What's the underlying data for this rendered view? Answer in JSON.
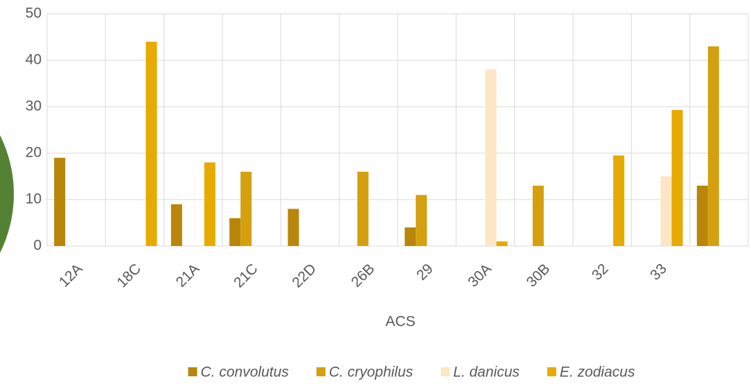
{
  "chart_data": {
    "type": "bar",
    "x_label": "ACS",
    "categories": [
      "12A",
      "18C",
      "21A",
      "21C",
      "22D",
      "26B",
      "29",
      "30A",
      "30B",
      "32",
      "33",
      null
    ],
    "series": [
      {
        "name": "C. convolutus",
        "color": "#b8860b",
        "values": [
          19,
          0,
          9,
          6,
          8,
          0,
          4,
          0,
          0,
          0,
          0,
          13
        ]
      },
      {
        "name": "C. cryophilus",
        "color": "#d4a00f",
        "values": [
          0,
          0,
          0,
          16,
          0,
          16,
          11,
          0,
          13,
          0,
          0,
          43
        ]
      },
      {
        "name": "L. danicus",
        "color": "#fde6c4",
        "values": [
          0,
          0,
          0,
          0,
          0,
          0,
          0,
          38,
          0,
          0,
          15,
          0
        ]
      },
      {
        "name": "E. zodiacus",
        "color": "#e6aa00",
        "values": [
          0,
          44,
          18,
          0,
          0,
          0,
          0,
          1,
          0,
          19.5,
          29.3,
          0
        ]
      }
    ],
    "ylim": [
      0,
      50
    ],
    "yticks": [
      0,
      10,
      20,
      30,
      40,
      50
    ],
    "grid": true,
    "legend": "bottom"
  }
}
